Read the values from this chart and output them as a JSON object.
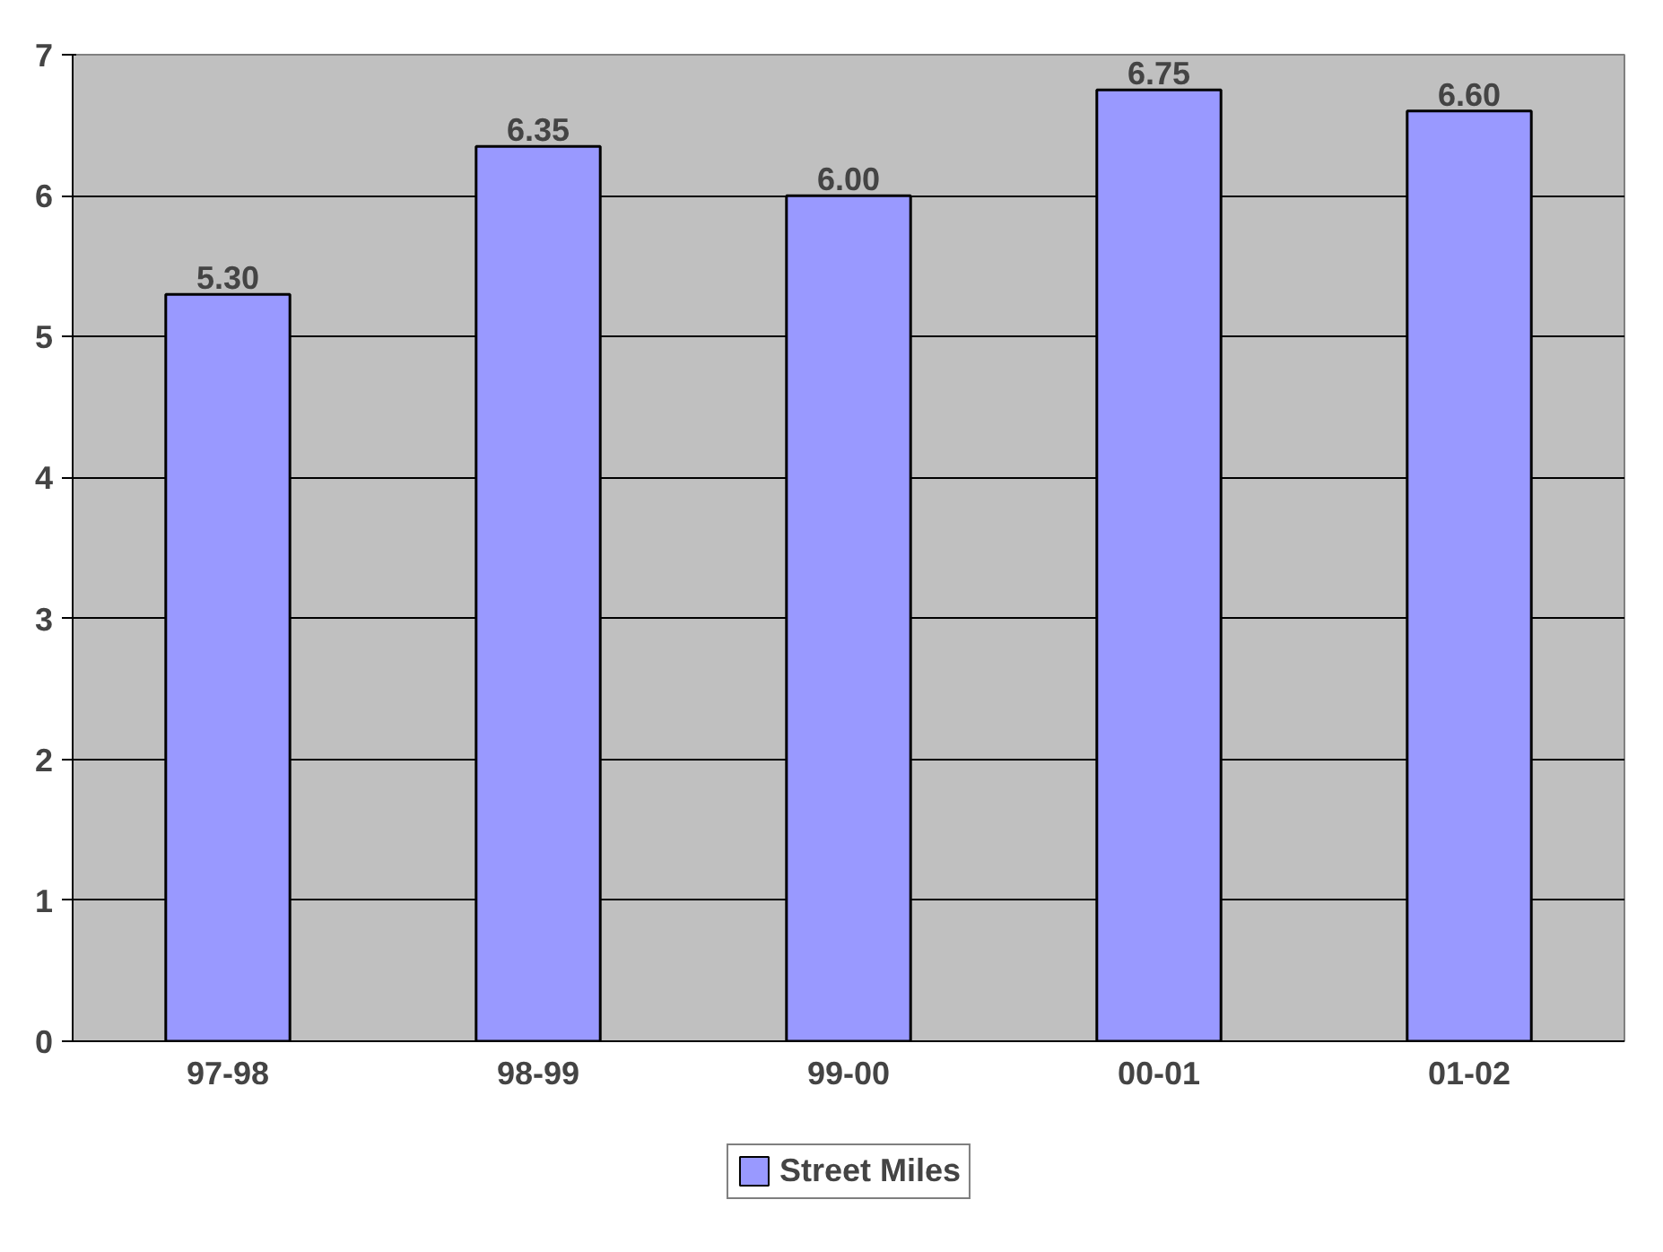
{
  "chart_data": {
    "type": "bar",
    "categories": [
      "97-98",
      "98-99",
      "99-00",
      "00-01",
      "01-02"
    ],
    "series": [
      {
        "name": "Street Miles",
        "color": "#9999ff",
        "values": [
          5.3,
          6.35,
          6.0,
          6.75,
          6.6
        ]
      }
    ],
    "value_labels": [
      "5.30",
      "6.35",
      "6.00",
      "6.75",
      "6.60"
    ],
    "ylim": [
      0,
      7
    ],
    "yticks": [
      0,
      1,
      2,
      3,
      4,
      5,
      6,
      7
    ],
    "grid": "y",
    "legend": "bottom"
  }
}
